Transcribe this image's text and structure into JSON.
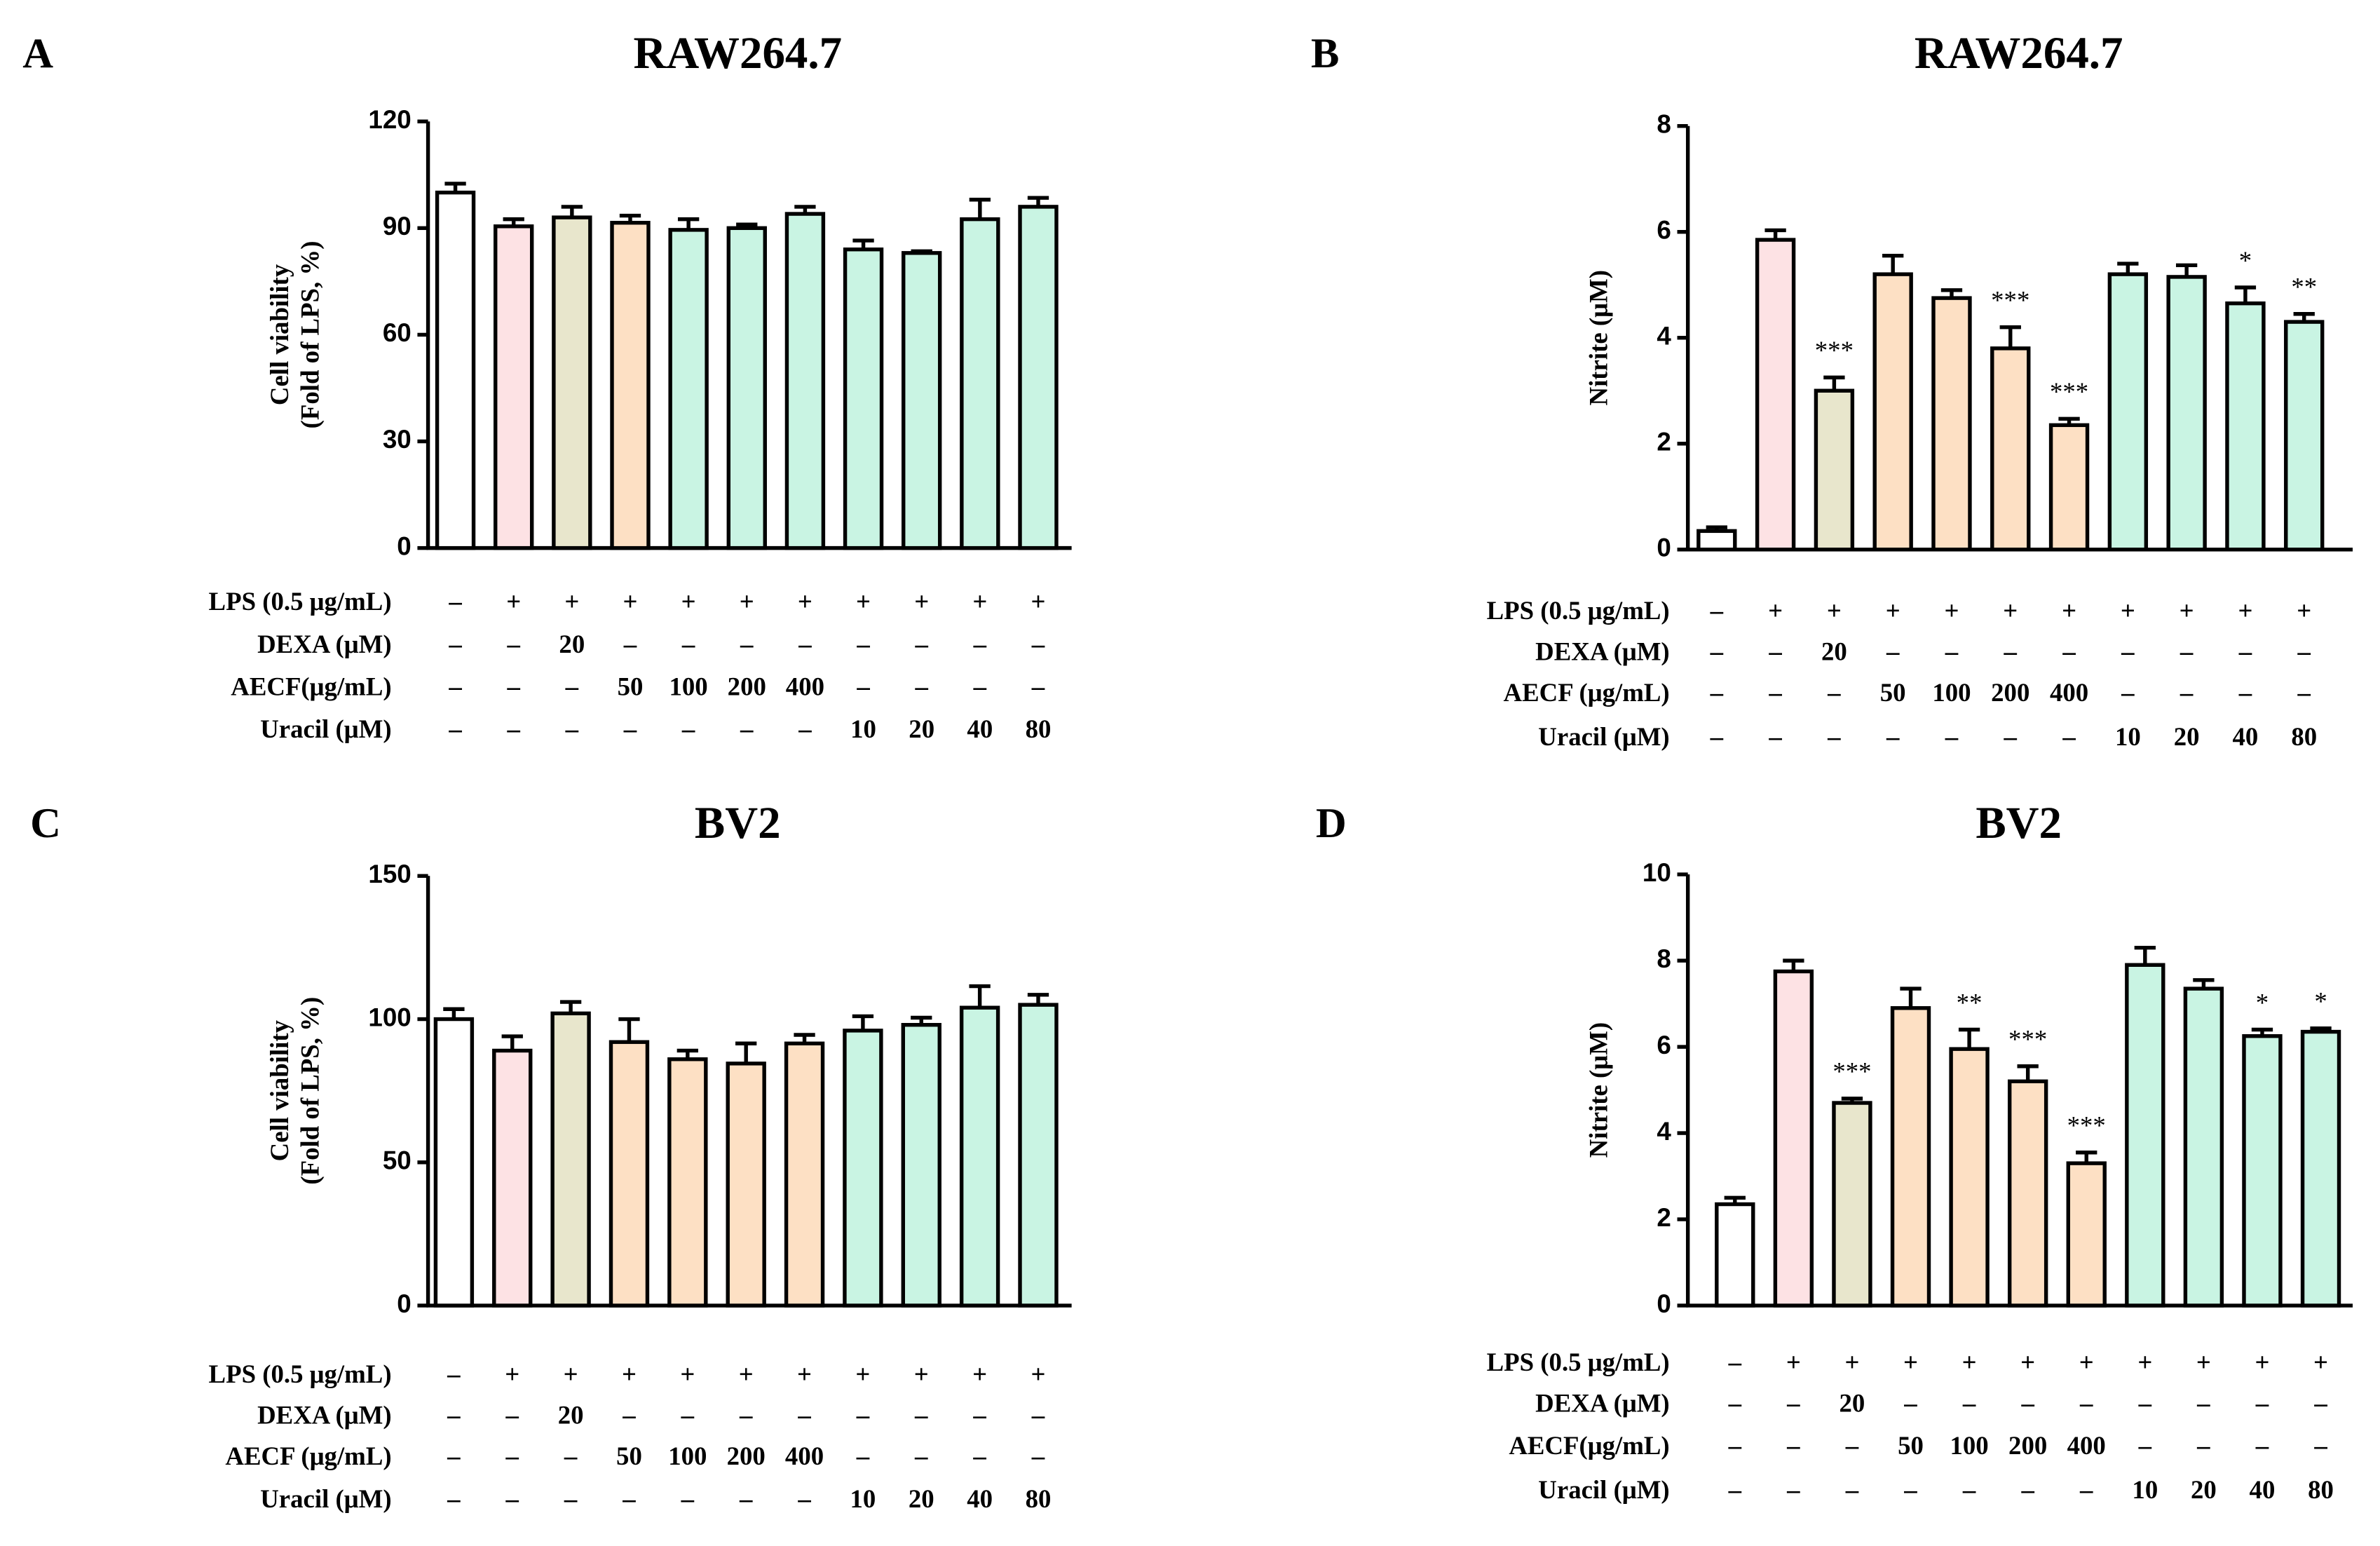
{
  "chart_data": [
    {
      "type": "bar",
      "panel": "A",
      "title": "RAW264.7",
      "ylabel": [
        "Cell viability",
        "(Fold of  LPS, %)"
      ],
      "ylim": [
        0,
        120
      ],
      "yticks": [
        0,
        30,
        60,
        90,
        120
      ],
      "values": [
        100,
        90.5,
        93,
        91.5,
        89.5,
        90,
        94,
        84,
        83,
        92.5,
        96
      ],
      "errors": [
        2.5,
        2,
        3,
        2,
        3,
        1,
        2,
        2.5,
        0.5,
        5.5,
        2.5
      ],
      "colors": [
        "#ffffff",
        "#fde2e4",
        "#e8e6cc",
        "#fde0c4",
        "#c9f4e3",
        "#c9f4e3",
        "#c9f4e3",
        "#c9f4e3",
        "#c9f4e3",
        "#c9f4e3",
        "#c9f4e3"
      ],
      "treatments": [
        {
          "label": "LPS (0.5 μg/mL)",
          "cells": [
            "–",
            "+",
            "+",
            "+",
            "+",
            "+",
            "+",
            "+",
            "+",
            "+",
            "+"
          ]
        },
        {
          "label": "DEXA (μM)",
          "cells": [
            "–",
            "–",
            "20",
            "–",
            "–",
            "–",
            "–",
            "–",
            "–",
            "–",
            "–"
          ]
        },
        {
          "label": "AECF(μg/mL)",
          "cells": [
            "–",
            "–",
            "–",
            "50",
            "100",
            "200",
            "400",
            "–",
            "–",
            "–",
            "–"
          ]
        },
        {
          "label": "Uracil (μM)",
          "cells": [
            "–",
            "–",
            "–",
            "–",
            "–",
            "–",
            "–",
            "10",
            "20",
            "40",
            "80"
          ]
        }
      ]
    },
    {
      "type": "bar",
      "panel": "B",
      "title": "RAW264.7",
      "ylabel": "Nitrite (μM)",
      "ylim": [
        0,
        8
      ],
      "yticks": [
        0,
        2,
        4,
        6,
        8
      ],
      "values": [
        0.35,
        5.85,
        3.0,
        5.2,
        4.75,
        3.8,
        2.35,
        5.2,
        5.15,
        4.65,
        4.3
      ],
      "errors": [
        0.07,
        0.18,
        0.25,
        0.35,
        0.15,
        0.4,
        0.12,
        0.2,
        0.22,
        0.3,
        0.15
      ],
      "significance": [
        null,
        null,
        "***",
        null,
        null,
        "***",
        "***",
        null,
        null,
        "*",
        "**"
      ],
      "colors": [
        "#ffffff",
        "#fde2e4",
        "#e8e6cc",
        "#fde0c4",
        "#fde0c4",
        "#fde0c4",
        "#fde0c4",
        "#c9f4e3",
        "#c9f4e3",
        "#c9f4e3",
        "#c9f4e3"
      ],
      "treatments": [
        {
          "label": "LPS (0.5 μg/mL)",
          "cells": [
            "–",
            "+",
            "+",
            "+",
            "+",
            "+",
            "+",
            "+",
            "+",
            "+",
            "+"
          ]
        },
        {
          "label": "DEXA (μM)",
          "cells": [
            "–",
            "–",
            "20",
            "–",
            "–",
            "–",
            "–",
            "–",
            "–",
            "–",
            "–"
          ]
        },
        {
          "label": "AECF (μg/mL)",
          "cells": [
            "–",
            "–",
            "–",
            "50",
            "100",
            "200",
            "400",
            "–",
            "–",
            "–",
            "–"
          ]
        },
        {
          "label": "Uracil (μM)",
          "cells": [
            "–",
            "–",
            "–",
            "–",
            "–",
            "–",
            "–",
            "10",
            "20",
            "40",
            "80"
          ]
        }
      ]
    },
    {
      "type": "bar",
      "panel": "C",
      "title": "BV2",
      "ylabel": [
        "Cell viability",
        "(Fold of  LPS, %)"
      ],
      "ylim": [
        0,
        150
      ],
      "yticks": [
        0,
        50,
        100,
        150
      ],
      "values": [
        100,
        89,
        102,
        92,
        86,
        84.5,
        91.5,
        96,
        98,
        104,
        105
      ],
      "errors": [
        3.5,
        5,
        4,
        8,
        3,
        7,
        3,
        5,
        2.5,
        7.5,
        3.5
      ],
      "colors": [
        "#ffffff",
        "#fde2e4",
        "#e8e6cc",
        "#fde0c4",
        "#fde0c4",
        "#fde0c4",
        "#fde0c4",
        "#c9f4e3",
        "#c9f4e3",
        "#c9f4e3",
        "#c9f4e3"
      ],
      "treatments": [
        {
          "label": "LPS (0.5 μg/mL)",
          "cells": [
            "–",
            "+",
            "+",
            "+",
            "+",
            "+",
            "+",
            "+",
            "+",
            "+",
            "+"
          ]
        },
        {
          "label": "DEXA (μM)",
          "cells": [
            "–",
            "–",
            "20",
            "–",
            "–",
            "–",
            "–",
            "–",
            "–",
            "–",
            "–"
          ]
        },
        {
          "label": "AECF (μg/mL)",
          "cells": [
            "–",
            "–",
            "–",
            "50",
            "100",
            "200",
            "400",
            "–",
            "–",
            "–",
            "–"
          ]
        },
        {
          "label": "Uracil (μM)",
          "cells": [
            "–",
            "–",
            "–",
            "–",
            "–",
            "–",
            "–",
            "10",
            "20",
            "40",
            "80"
          ]
        }
      ]
    },
    {
      "type": "bar",
      "panel": "D",
      "title": "BV2",
      "ylabel": "Nitrite (μM)",
      "ylim": [
        0,
        10
      ],
      "yticks": [
        0,
        2,
        4,
        6,
        8,
        10
      ],
      "values": [
        2.35,
        7.75,
        4.7,
        6.9,
        5.95,
        5.2,
        3.3,
        7.9,
        7.35,
        6.25,
        6.35
      ],
      "errors": [
        0.15,
        0.25,
        0.1,
        0.45,
        0.45,
        0.35,
        0.25,
        0.4,
        0.2,
        0.15,
        0.08
      ],
      "significance": [
        null,
        null,
        "***",
        null,
        "**",
        "***",
        "***",
        null,
        null,
        "*",
        "*"
      ],
      "colors": [
        "#ffffff",
        "#fde2e4",
        "#e8e6cc",
        "#fde0c4",
        "#fde0c4",
        "#fde0c4",
        "#fde0c4",
        "#c9f4e3",
        "#c9f4e3",
        "#c9f4e3",
        "#c9f4e3"
      ],
      "treatments": [
        {
          "label": "LPS (0.5 μg/mL)",
          "cells": [
            "–",
            "+",
            "+",
            "+",
            "+",
            "+",
            "+",
            "+",
            "+",
            "+",
            "+"
          ]
        },
        {
          "label": "DEXA (μM)",
          "cells": [
            "–",
            "–",
            "20",
            "–",
            "–",
            "–",
            "–",
            "–",
            "–",
            "–",
            "–"
          ]
        },
        {
          "label": "AECF(μg/mL)",
          "cells": [
            "–",
            "–",
            "–",
            "50",
            "100",
            "200",
            "400",
            "–",
            "–",
            "–",
            "–"
          ]
        },
        {
          "label": "Uracil (μM)",
          "cells": [
            "–",
            "–",
            "–",
            "–",
            "–",
            "–",
            "–",
            "10",
            "20",
            "40",
            "80"
          ]
        }
      ]
    }
  ]
}
